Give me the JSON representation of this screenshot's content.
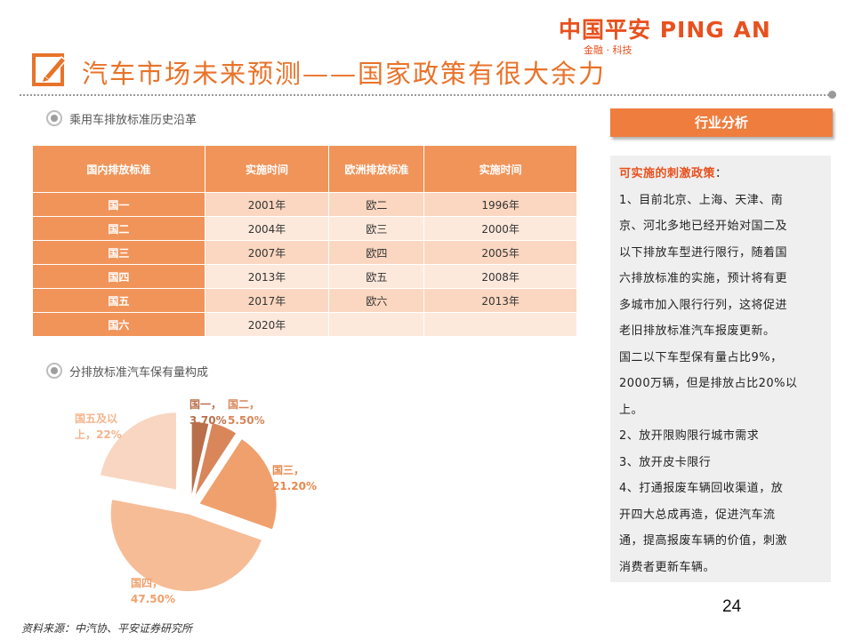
{
  "brand": {
    "name": "中国平安 PING AN",
    "tagline": "金融 · 科技",
    "color": "#e8511e"
  },
  "title": "汽车市场未来预测——国家政策有很大余力",
  "section1": {
    "label": "乘用车排放标准历史沿革"
  },
  "table": {
    "headers": [
      "国内排放标准",
      "实施时间",
      "欧洲排放标准",
      "实施时间"
    ],
    "rows": [
      [
        "国一",
        "2001年",
        "欧二",
        "1996年"
      ],
      [
        "国二",
        "2004年",
        "欧三",
        "2000年"
      ],
      [
        "国三",
        "2007年",
        "欧四",
        "2005年"
      ],
      [
        "国四",
        "2013年",
        "欧五",
        "2008年"
      ],
      [
        "国五",
        "2017年",
        "欧六",
        "2013年"
      ],
      [
        "国六",
        "2020年",
        "",
        ""
      ]
    ]
  },
  "section2": {
    "label": "分排放标准汽车保有量构成"
  },
  "chart_data": {
    "type": "pie",
    "title": "",
    "slices": [
      {
        "label": "国一",
        "value": 3.7,
        "color": "#b86f4a",
        "text": "国一，\n3.70%"
      },
      {
        "label": "国二",
        "value": 5.5,
        "color": "#d8865a",
        "text": "国二，\n5.50%"
      },
      {
        "label": "国三",
        "value": 21.2,
        "color": "#f0a06c",
        "text": "国三，\n21.20%"
      },
      {
        "label": "国四",
        "value": 47.5,
        "color": "#f6bc96",
        "text": "国四，\n47.50%"
      },
      {
        "label": "国五及以上",
        "value": 22.0,
        "color": "#f8d6c2",
        "text": "国五及以\n上，22%"
      }
    ]
  },
  "panel": {
    "header": "行业分析",
    "heading": "可实施的刺激政策",
    "heading_colon": "：",
    "lines": [
      "1、目前北京、上海、天津、南",
      "京、河北多地已经开始对国二及",
      "以下排放车型进行限行，随着国",
      "六排放标准的实施，预计将有更",
      "多城市加入限行行列，这将促进",
      "老旧排放标准汽车报废更新。",
      "国二以下车型保有量占比9%，",
      "2000万辆，但是排放占比20%以",
      "上。",
      "2、放开限购限行城市需求",
      "3、放开皮卡限行",
      "4、打通报废车辆回收渠道，放",
      "开四大总成再造，促进汽车流",
      "通，提高报废车辆的价值，刺激",
      "消费者更新车辆。"
    ]
  },
  "page_number": "24",
  "source": "资料来源：中汽协、平安证券研究所"
}
